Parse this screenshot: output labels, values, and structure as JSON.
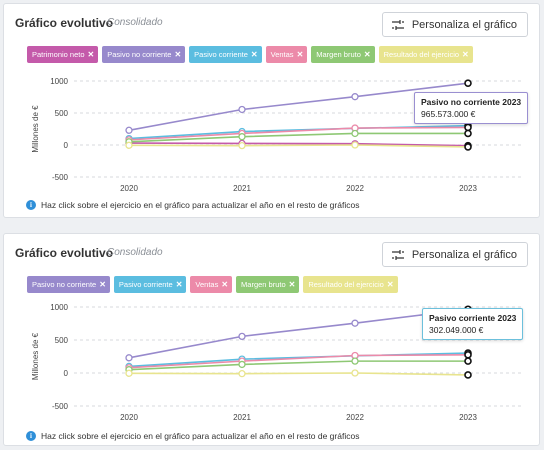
{
  "panels": [
    {
      "title": "Gráfico evolutivo",
      "subtitle": "Consolidado",
      "customize_label": "Personaliza el gráfico",
      "chips": [
        {
          "label": "Patrimonio neto",
          "color": "#c45aaa"
        },
        {
          "label": "Pasivo no corriente",
          "color": "#9789cc"
        },
        {
          "label": "Pasivo corriente",
          "color": "#5bbde0"
        },
        {
          "label": "Ventas",
          "color": "#ec8aa9"
        },
        {
          "label": "Margen bruto",
          "color": "#8ec874"
        },
        {
          "label": "Resultado del ejercicio",
          "color": "#e8e48e"
        }
      ],
      "tooltip": {
        "title": "Pasivo no corriente 2023",
        "value": "965.573.000 €"
      },
      "footer": "Haz click sobre el ejercicio en el gráfico para actualizar el año en el resto de gráficos"
    },
    {
      "title": "Gráfico evolutivo",
      "subtitle": "Consolidado",
      "customize_label": "Personaliza el gráfico",
      "chips": [
        {
          "label": "Pasivo no corriente",
          "color": "#9789cc"
        },
        {
          "label": "Pasivo corriente",
          "color": "#5bbde0"
        },
        {
          "label": "Ventas",
          "color": "#ec8aa9"
        },
        {
          "label": "Margen bruto",
          "color": "#8ec874"
        },
        {
          "label": "Resultado del ejercicio",
          "color": "#e8e48e"
        }
      ],
      "tooltip": {
        "title": "Pasivo corriente 2023",
        "value": "302.049.000 €"
      },
      "footer": "Haz click sobre el ejercicio en el gráfico para actualizar el año en el resto de gráficos"
    }
  ],
  "chart_data": [
    {
      "type": "line",
      "ylabel": "Millones de €",
      "x": [
        "2020",
        "2021",
        "2022",
        "2023"
      ],
      "yticks": [
        -500,
        0,
        500,
        1000
      ],
      "ylim": [
        -500,
        1000
      ],
      "grid": "horizontal dashed",
      "series": [
        {
          "name": "Patrimonio neto",
          "color": "#c45aaa",
          "values": [
            30,
            25,
            20,
            -10
          ]
        },
        {
          "name": "Pasivo no corriente",
          "color": "#9789cc",
          "values": [
            230,
            555,
            755,
            966
          ]
        },
        {
          "name": "Pasivo corriente",
          "color": "#5bbde0",
          "values": [
            100,
            210,
            260,
            302
          ]
        },
        {
          "name": "Ventas",
          "color": "#ec8aa9",
          "values": [
            80,
            180,
            265,
            275
          ]
        },
        {
          "name": "Margen bruto",
          "color": "#8ec874",
          "values": [
            50,
            130,
            180,
            180
          ]
        },
        {
          "name": "Resultado del ejercicio",
          "color": "#e8e48e",
          "values": [
            -5,
            -10,
            0,
            -30
          ]
        }
      ],
      "highlight_point": {
        "series": "Pasivo no corriente",
        "x": "2023"
      }
    },
    {
      "type": "line",
      "ylabel": "Millones de €",
      "x": [
        "2020",
        "2021",
        "2022",
        "2023"
      ],
      "yticks": [
        -500,
        0,
        500,
        1000
      ],
      "ylim": [
        -500,
        1000
      ],
      "grid": "horizontal dashed",
      "series": [
        {
          "name": "Pasivo no corriente",
          "color": "#9789cc",
          "values": [
            230,
            555,
            755,
            966
          ]
        },
        {
          "name": "Pasivo corriente",
          "color": "#5bbde0",
          "values": [
            100,
            210,
            260,
            302
          ]
        },
        {
          "name": "Ventas",
          "color": "#ec8aa9",
          "values": [
            80,
            180,
            265,
            275
          ]
        },
        {
          "name": "Margen bruto",
          "color": "#8ec874",
          "values": [
            50,
            130,
            180,
            180
          ]
        },
        {
          "name": "Resultado del ejercicio",
          "color": "#e8e48e",
          "values": [
            -5,
            -10,
            0,
            -30
          ]
        }
      ],
      "highlight_point": {
        "series": "Pasivo corriente",
        "x": "2023"
      }
    }
  ]
}
